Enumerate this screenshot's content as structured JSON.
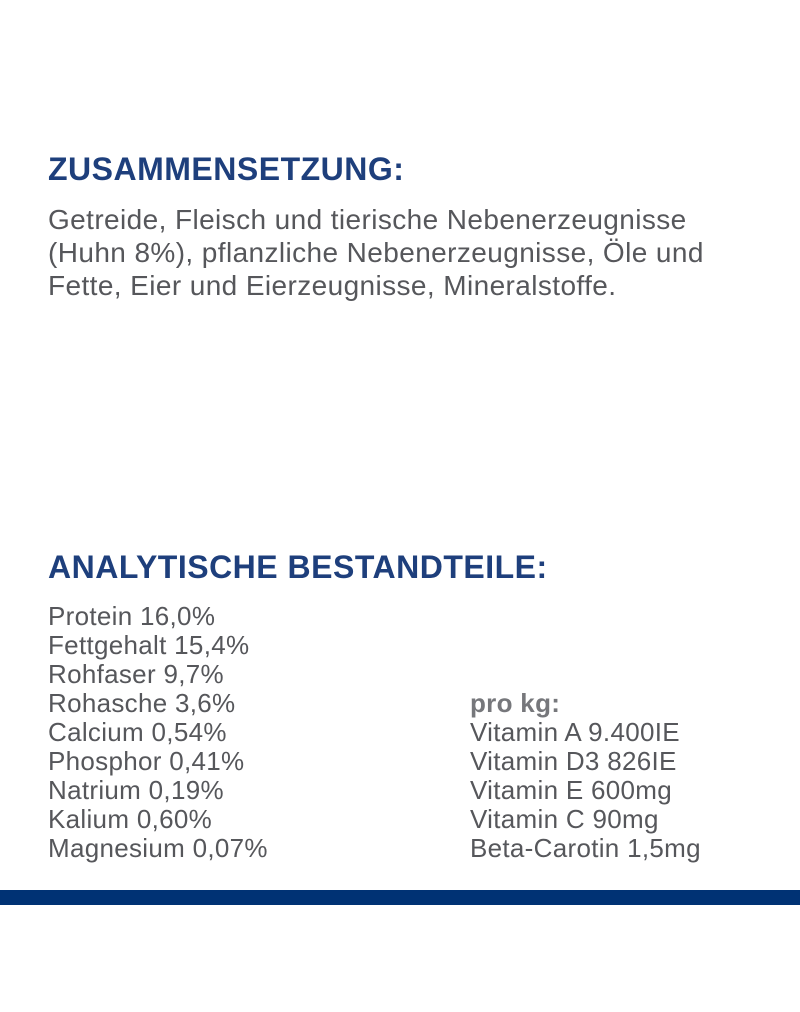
{
  "colors": {
    "heading_blue": "#1e3f7c",
    "body_gray": "#56575b",
    "per_kg_gray": "#76777b",
    "footer_bar_blue": "#003274",
    "background": "#ffffff"
  },
  "composition": {
    "heading": "ZUSAMMENSETZUNG:",
    "paragraph_lines": [
      "Getreide, Fleisch und tierische Nebenerzeugnisse",
      "(Huhn 8%), pflanzliche Nebenerzeugnisse, Öle und",
      "Fette, Eier und Eierzeugnisse, Mineralstoffe."
    ]
  },
  "analytical": {
    "heading": "ANALYTISCHE BESTANDTEILE:",
    "nutrients": [
      {
        "name": "Protein",
        "value": "16,0%"
      },
      {
        "name": "Fettgehalt",
        "value": "15,4%"
      },
      {
        "name": "Rohfaser",
        "value": "9,7%"
      },
      {
        "name": "Rohasche",
        "value": "3,6%"
      },
      {
        "name": "Calcium",
        "value": "0,54%"
      },
      {
        "name": "Phosphor",
        "value": "0,41%"
      },
      {
        "name": "Natrium",
        "value": "0,19%"
      },
      {
        "name": "Kalium",
        "value": "0,60%"
      },
      {
        "name": "Magnesium",
        "value": "0,07%"
      }
    ],
    "per_kg": {
      "label": "pro kg:",
      "vitamins": [
        {
          "name": "Vitamin A",
          "value": "9.400IE"
        },
        {
          "name": "Vitamin D3",
          "value": "826IE"
        },
        {
          "name": "Vitamin E",
          "value": "600mg"
        },
        {
          "name": "Vitamin C",
          "value": "90mg"
        },
        {
          "name": "Beta-Carotin",
          "value": "1,5mg"
        }
      ]
    }
  }
}
